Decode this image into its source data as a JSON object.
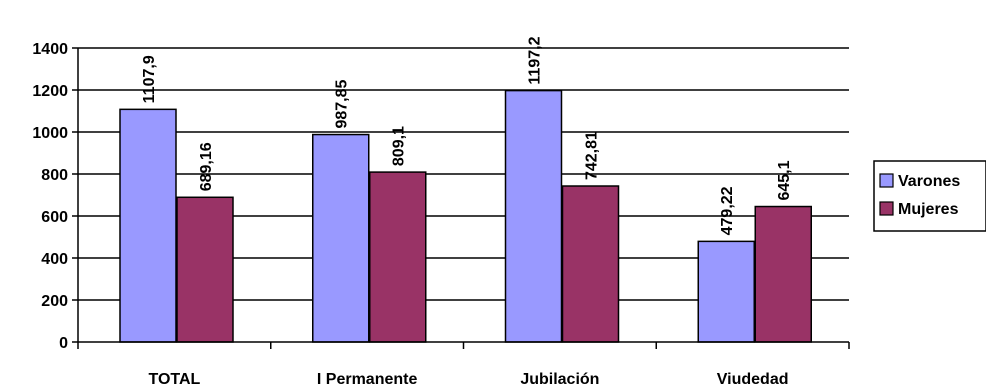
{
  "chart_data": {
    "type": "bar",
    "categories": [
      "TOTAL",
      "I Permanente",
      "Jubilación",
      "Viudedad"
    ],
    "series": [
      {
        "name": "Varones",
        "color": "#9999FF",
        "values": [
          1107.9,
          987.85,
          1197.2,
          479.22
        ],
        "labels": [
          "1107,9",
          "987,85",
          "1197,2",
          "479,22"
        ]
      },
      {
        "name": "Mujeres",
        "color": "#993366",
        "values": [
          689.16,
          809.1,
          742.81,
          645.1
        ],
        "labels": [
          "689,16",
          "809,1",
          "742,81",
          "645,1"
        ]
      }
    ],
    "y_ticks": [
      "0",
      "200",
      "400",
      "600",
      "800",
      "1000",
      "1200",
      "1400"
    ],
    "ylim": [
      0,
      1400
    ],
    "grid": true,
    "legend_position": "right"
  }
}
